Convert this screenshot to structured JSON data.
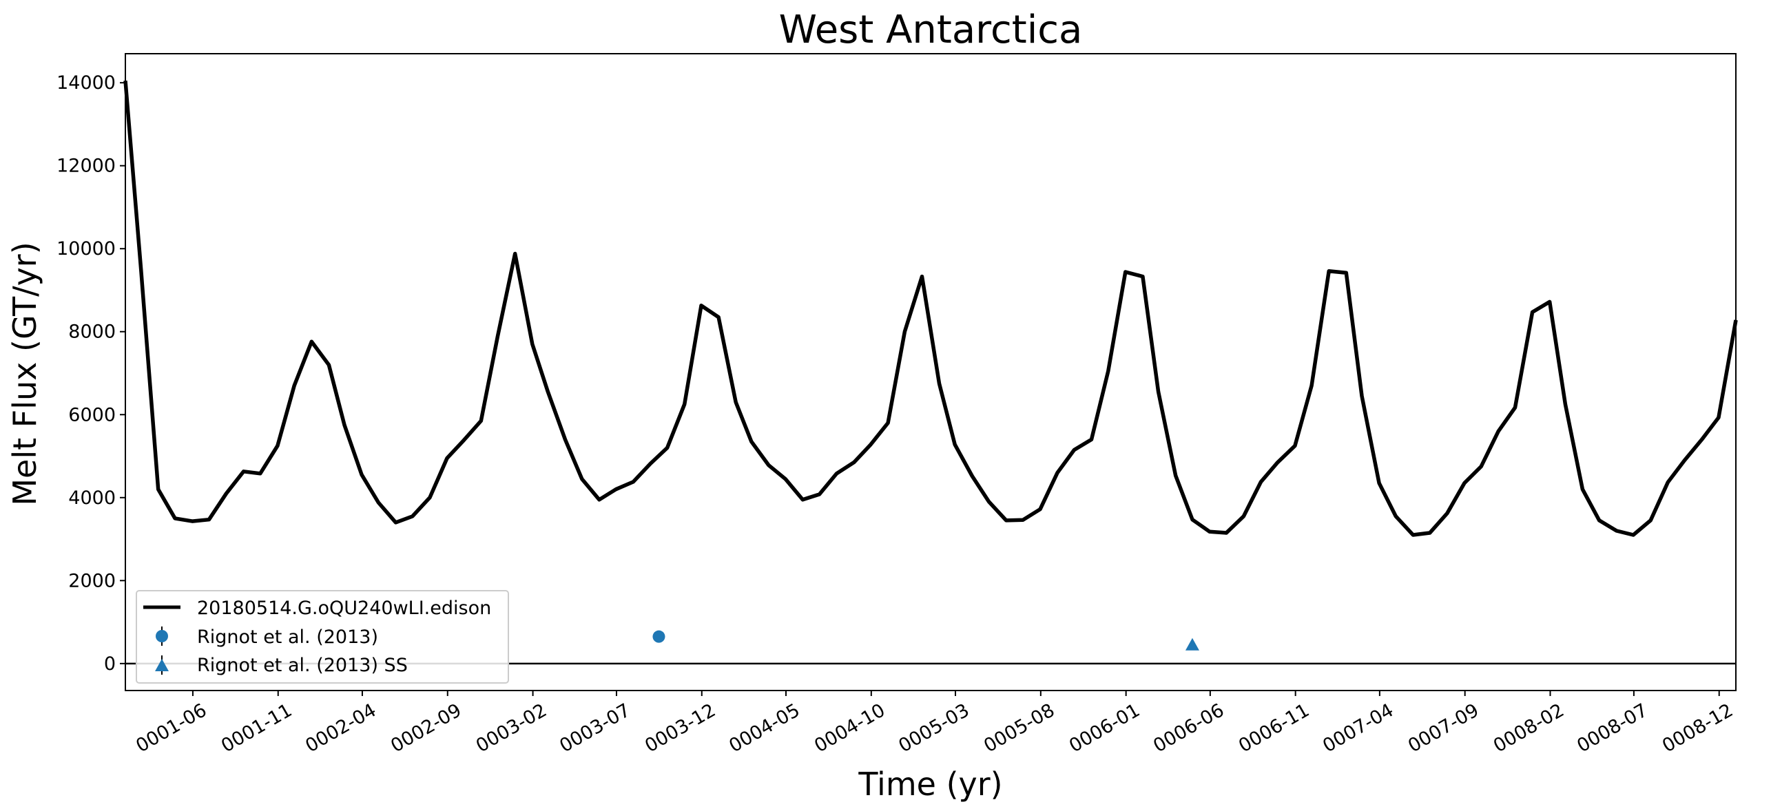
{
  "chart_data": {
    "type": "line",
    "title": "West Antarctica",
    "xlabel": "Time (yr)",
    "ylabel": "Melt Flux (GT/yr)",
    "xlim": [
      "0001-01-31",
      "0008-12-31"
    ],
    "ylim": [
      -650,
      14700
    ],
    "yticks": [
      0,
      2000,
      4000,
      6000,
      8000,
      10000,
      12000,
      14000
    ],
    "xticks": [
      "0001-06",
      "0001-11",
      "0002-04",
      "0002-09",
      "0003-02",
      "0003-07",
      "0003-12",
      "0004-05",
      "0004-10",
      "0005-03",
      "0005-08",
      "0006-01",
      "0006-06",
      "0006-11",
      "0007-04",
      "0007-09",
      "0008-02",
      "0008-07",
      "0008-12"
    ],
    "grid": false,
    "legend_position": "lower-left",
    "series": [
      {
        "name": "20180514.G.oQU240wLI.edison",
        "color": "#000000",
        "x": [
          "0001-01-31",
          "0001-02-28",
          "0001-03-31",
          "0001-04-30",
          "0001-05-31",
          "0001-06-30",
          "0001-07-31",
          "0001-08-31",
          "0001-09-30",
          "0001-10-31",
          "0001-11-30",
          "0001-12-31",
          "0002-01-31",
          "0002-02-28",
          "0002-03-31",
          "0002-04-30",
          "0002-05-31",
          "0002-06-30",
          "0002-07-31",
          "0002-08-31",
          "0002-09-30",
          "0002-10-31",
          "0002-11-30",
          "0002-12-31",
          "0003-01-31",
          "0003-02-28",
          "0003-03-31",
          "0003-04-30",
          "0003-05-31",
          "0003-06-30",
          "0003-07-31",
          "0003-08-31",
          "0003-09-30",
          "0003-10-31",
          "0003-11-30",
          "0003-12-31",
          "0004-01-31",
          "0004-02-28",
          "0004-03-31",
          "0004-04-30",
          "0004-05-31",
          "0004-06-30",
          "0004-07-31",
          "0004-08-31",
          "0004-09-30",
          "0004-10-31",
          "0004-11-30",
          "0004-12-31",
          "0005-01-31",
          "0005-02-28",
          "0005-03-31",
          "0005-04-30",
          "0005-05-31",
          "0005-06-30",
          "0005-07-31",
          "0005-08-31",
          "0005-09-30",
          "0005-10-31",
          "0005-11-30",
          "0005-12-31",
          "0006-01-31",
          "0006-02-28",
          "0006-03-31",
          "0006-04-30",
          "0006-05-31",
          "0006-06-30",
          "0006-07-31",
          "0006-08-31",
          "0006-09-30",
          "0006-10-31",
          "0006-11-30",
          "0006-12-31",
          "0007-01-31",
          "0007-02-28",
          "0007-03-31",
          "0007-04-30",
          "0007-05-31",
          "0007-06-30",
          "0007-07-31",
          "0007-08-31",
          "0007-09-30",
          "0007-10-31",
          "0007-11-30",
          "0007-12-31",
          "0008-01-31",
          "0008-02-28",
          "0008-03-31",
          "0008-04-30",
          "0008-05-31",
          "0008-06-30",
          "0008-07-31",
          "0008-08-31",
          "0008-09-30",
          "0008-10-31",
          "0008-11-30",
          "0008-12-31"
        ],
        "y": [
          14050,
          9500,
          4200,
          3500,
          3430,
          3470,
          4100,
          4630,
          4580,
          5250,
          6700,
          7760,
          7200,
          5750,
          4550,
          3880,
          3400,
          3550,
          4000,
          4950,
          5380,
          5850,
          7900,
          9880,
          7700,
          6550,
          5400,
          4450,
          3950,
          4200,
          4380,
          4820,
          5200,
          6250,
          8630,
          8350,
          6300,
          5350,
          4780,
          4450,
          3950,
          4080,
          4580,
          4850,
          5280,
          5800,
          8000,
          9330,
          6750,
          5280,
          4520,
          3900,
          3450,
          3460,
          3720,
          4600,
          5150,
          5400,
          7050,
          9440,
          9330,
          6550,
          4530,
          3470,
          3180,
          3150,
          3550,
          4380,
          4850,
          5250,
          6700,
          9460,
          9420,
          6450,
          4350,
          3550,
          3100,
          3150,
          3620,
          4350,
          4750,
          5600,
          6170,
          8470,
          8720,
          6250,
          4200,
          3450,
          3200,
          3100,
          3450,
          4370,
          4900,
          5400,
          5930,
          8280
        ]
      },
      {
        "name": "Rignot et al. (2013)",
        "color": "#1f77b4",
        "marker": "circle",
        "x": [
          "0003-09-15"
        ],
        "y": [
          650
        ]
      },
      {
        "name": "Rignot et al. (2013) SS",
        "color": "#1f77b4",
        "marker": "triangle",
        "x": [
          "0006-04-30"
        ],
        "y": [
          450
        ]
      }
    ]
  }
}
